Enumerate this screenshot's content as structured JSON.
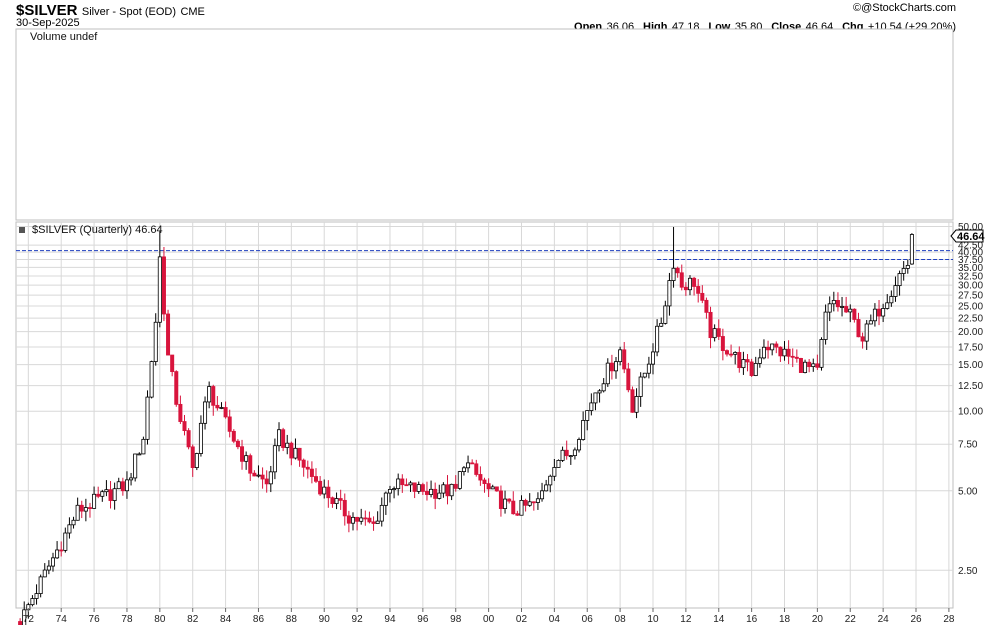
{
  "header": {
    "symbol": "$SILVER",
    "description": "Silver - Spot (EOD)",
    "exchange": "CME",
    "date": "30-Sep-2025",
    "ohlc": {
      "open_label": "Open",
      "open": "36.06",
      "high_label": "High",
      "high": "47.18",
      "low_label": "Low",
      "low": "35.80",
      "close_label": "Close",
      "close": "46.64",
      "chg_label": "Chg",
      "chg": "+10.54 (+29.20%)"
    },
    "brand": "@StockCharts.com"
  },
  "volume_panel": {
    "label": "Volume undef"
  },
  "price_panel": {
    "label": "$SILVER (Quarterly) 46.64",
    "last_price": "46.64"
  },
  "colors": {
    "up": "#000000",
    "down": "#d8143c",
    "resistance": "#1f3fbf",
    "grid": "#d8d8d8",
    "frame": "#bfbfbf"
  },
  "chart_data": {
    "type": "candlestick",
    "scale": "log",
    "ylim": [
      1.8,
      52
    ],
    "y_ticks": [
      2.5,
      5,
      7.5,
      10,
      12.5,
      15,
      17.5,
      20,
      22.5,
      25,
      27.5,
      30,
      32.5,
      35,
      37.5,
      40,
      42.5,
      50
    ],
    "x_ticks": [
      "72",
      "74",
      "76",
      "78",
      "80",
      "82",
      "84",
      "86",
      "88",
      "90",
      "92",
      "94",
      "96",
      "98",
      "00",
      "02",
      "04",
      "06",
      "08",
      "10",
      "12",
      "14",
      "16",
      "18",
      "20",
      "22",
      "24",
      "26",
      "28"
    ],
    "x_range_years": [
      1971.25,
      2028.25
    ],
    "resistance_levels": [
      {
        "y": 40.5,
        "from": 1971.25,
        "to": 2028.25
      },
      {
        "y": 37.5,
        "from": 2010.25,
        "to": 2028.25
      }
    ],
    "closes": [
      {
        "year": 1971.5,
        "close": 1.6
      },
      {
        "year": 1975.0,
        "close": 4.2
      },
      {
        "year": 1978.0,
        "close": 5.3
      },
      {
        "year": 1979.0,
        "close": 8.0
      },
      {
        "year": 1979.75,
        "close": 22.0
      },
      {
        "year": 1980.0,
        "close": 38.0
      },
      {
        "year": 1980.5,
        "close": 16.0
      },
      {
        "year": 1981.0,
        "close": 11.0
      },
      {
        "year": 1982.0,
        "close": 6.0
      },
      {
        "year": 1982.5,
        "close": 9.0
      },
      {
        "year": 1983.0,
        "close": 12.0
      },
      {
        "year": 1984.0,
        "close": 9.0
      },
      {
        "year": 1985.5,
        "close": 6.0
      },
      {
        "year": 1986.5,
        "close": 5.3
      },
      {
        "year": 1987.25,
        "close": 8.0
      },
      {
        "year": 1988.5,
        "close": 6.5
      },
      {
        "year": 1990.0,
        "close": 5.0
      },
      {
        "year": 1991.5,
        "close": 4.0
      },
      {
        "year": 1993.0,
        "close": 3.7
      },
      {
        "year": 1994.0,
        "close": 5.3
      },
      {
        "year": 1996.0,
        "close": 5.0
      },
      {
        "year": 1998.0,
        "close": 5.0
      },
      {
        "year": 1998.5,
        "close": 6.5
      },
      {
        "year": 2000.0,
        "close": 5.0
      },
      {
        "year": 2001.5,
        "close": 4.2
      },
      {
        "year": 2003.0,
        "close": 4.5
      },
      {
        "year": 2004.0,
        "close": 6.5
      },
      {
        "year": 2005.0,
        "close": 7.0
      },
      {
        "year": 2006.5,
        "close": 12.0
      },
      {
        "year": 2008.0,
        "close": 17.0
      },
      {
        "year": 2008.75,
        "close": 10.5
      },
      {
        "year": 2009.5,
        "close": 14.0
      },
      {
        "year": 2010.5,
        "close": 22.0
      },
      {
        "year": 2011.25,
        "close": 37.0
      },
      {
        "year": 2011.75,
        "close": 30.0
      },
      {
        "year": 2012.5,
        "close": 31.0
      },
      {
        "year": 2013.5,
        "close": 20.0
      },
      {
        "year": 2015.0,
        "close": 16.0
      },
      {
        "year": 2016.0,
        "close": 14.0
      },
      {
        "year": 2016.75,
        "close": 18.0
      },
      {
        "year": 2018.0,
        "close": 16.5
      },
      {
        "year": 2019.0,
        "close": 15.0
      },
      {
        "year": 2020.0,
        "close": 14.0
      },
      {
        "year": 2020.5,
        "close": 23.0
      },
      {
        "year": 2021.0,
        "close": 26.0
      },
      {
        "year": 2022.0,
        "close": 23.0
      },
      {
        "year": 2022.75,
        "close": 19.0
      },
      {
        "year": 2023.5,
        "close": 23.0
      },
      {
        "year": 2024.5,
        "close": 29.0
      },
      {
        "year": 2025.0,
        "close": 33.0
      },
      {
        "year": 2025.5,
        "close": 36.06
      },
      {
        "year": 2025.75,
        "close": 46.64
      }
    ]
  }
}
